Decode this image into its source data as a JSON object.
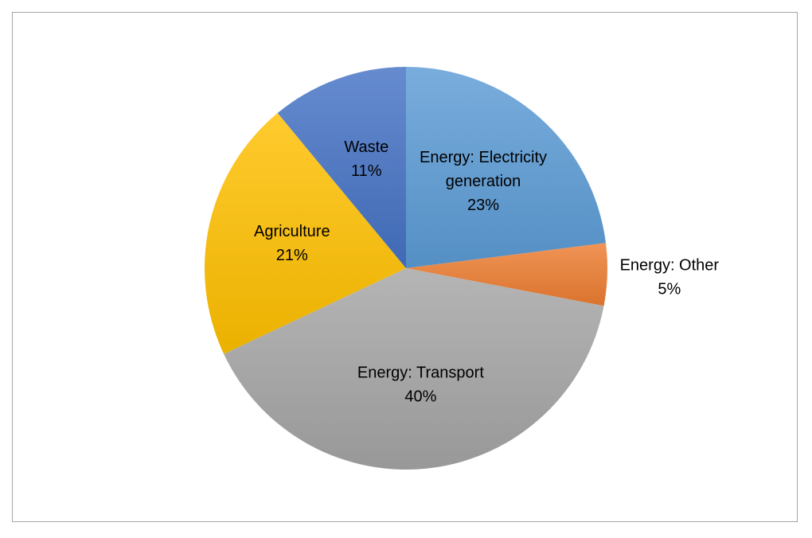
{
  "chart_data": {
    "type": "pie",
    "title": "",
    "legend": "none",
    "slices": [
      {
        "label_lines": [
          "Energy: Electricity",
          "generation"
        ],
        "value": 23,
        "value_label": "23%",
        "color": "#5b9bd5",
        "label_position": "inside"
      },
      {
        "label_lines": [
          "Energy: Other"
        ],
        "value": 5,
        "value_label": "5%",
        "color": "#ed7d31",
        "label_position": "outside"
      },
      {
        "label_lines": [
          "Energy: Transport"
        ],
        "value": 40,
        "value_label": "40%",
        "color": "#a5a5a5",
        "label_position": "inside"
      },
      {
        "label_lines": [
          "Agriculture"
        ],
        "value": 21,
        "value_label": "21%",
        "color": "#ffc000",
        "label_position": "inside"
      },
      {
        "label_lines": [
          "Waste"
        ],
        "value": 11,
        "value_label": "11%",
        "color": "#4472c4",
        "label_position": "inside"
      }
    ]
  }
}
